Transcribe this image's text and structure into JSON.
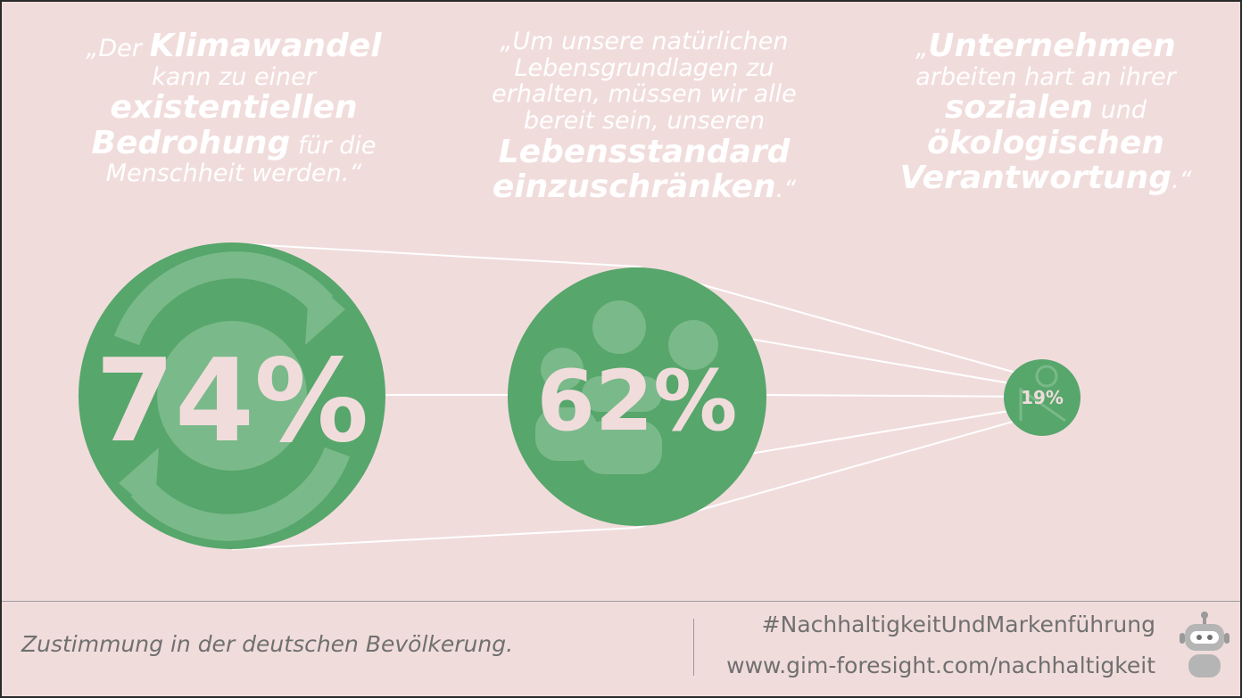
{
  "quotes": [
    {
      "open": "„Der ",
      "bold1": "Klimawandel",
      "mid1": "kann zu einer",
      "bold2": "existentiellen",
      "bold3": "Bedrohung",
      "mid2": " für die",
      "mid3": "Menschheit werden.“"
    },
    {
      "line1": "„Um unsere natürlichen",
      "line2": "Lebensgrundlagen zu",
      "line3": "erhalten, müssen wir alle",
      "line4": "bereit sein, unseren",
      "bold1": "Lebensstandard",
      "bold2": "einzuschränken",
      "close": ".“"
    },
    {
      "open": "„",
      "bold1": "Unternehmen",
      "line2": "arbeiten hart an ihrer",
      "bold2": "sozialen",
      "mid": " und",
      "bold3": "ökologischen",
      "bold4": "Verantwortung",
      "close": ".“"
    }
  ],
  "stats": [
    {
      "value": "74%",
      "icon": "globe-recycle-icon"
    },
    {
      "value": "62%",
      "icon": "people-group-icon"
    },
    {
      "value": "19%",
      "icon": "euro-chart-icon"
    }
  ],
  "footer": {
    "note": "Zustimmung in der deutschen Bevölkerung.",
    "hashtag": "#NachhaltigkeitUndMarkenführung",
    "url": "www.gim-foresight.com/nachhaltigkeit"
  },
  "colors": {
    "background": "#f1dcdc",
    "circle": "#57a66b",
    "icon": "#7ab98a",
    "number": "#f1dcdc",
    "text_gray": "#707070"
  }
}
